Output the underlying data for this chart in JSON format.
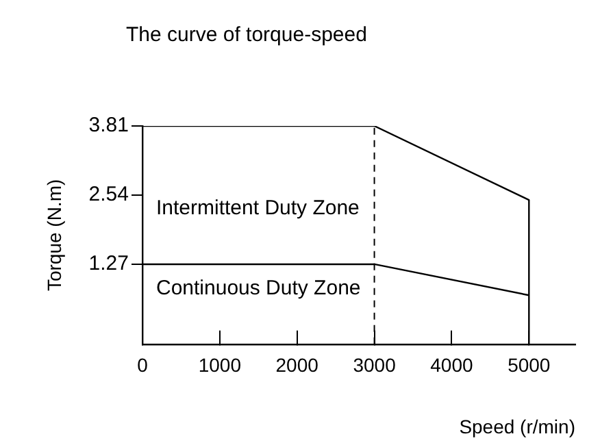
{
  "chart_data": {
    "type": "line",
    "title": "The curve of torque-speed",
    "xlabel": "Speed (r/min)",
    "ylabel": "Torque (N.m)",
    "series": [
      {
        "color": "#000000",
        "x": [
          0,
          3000,
          5000,
          5000
        ],
        "values": [
          3.81,
          3.81,
          2.45,
          -0.2
        ]
      },
      {
        "color": "#000000",
        "x": [
          0,
          3000,
          5000
        ],
        "values": [
          1.27,
          1.27,
          0.7
        ]
      }
    ],
    "xlim": [
      0,
      5600
    ],
    "xticks": [
      0,
      1000,
      2000,
      3000,
      4000,
      5000
    ],
    "ylim": [
      -0.2,
      3.81
    ],
    "yticks": [
      1.27,
      2.54,
      3.81
    ],
    "ref_lines": [
      {
        "axis": "x",
        "value": 3000,
        "color": "#000000",
        "line_style": "dashed"
      }
    ],
    "annotations": [
      "Intermittent Duty Zone",
      "Continuous Duty Zone"
    ],
    "grid": false,
    "legend": false,
    "marker": "none",
    "line_style": "solid"
  }
}
